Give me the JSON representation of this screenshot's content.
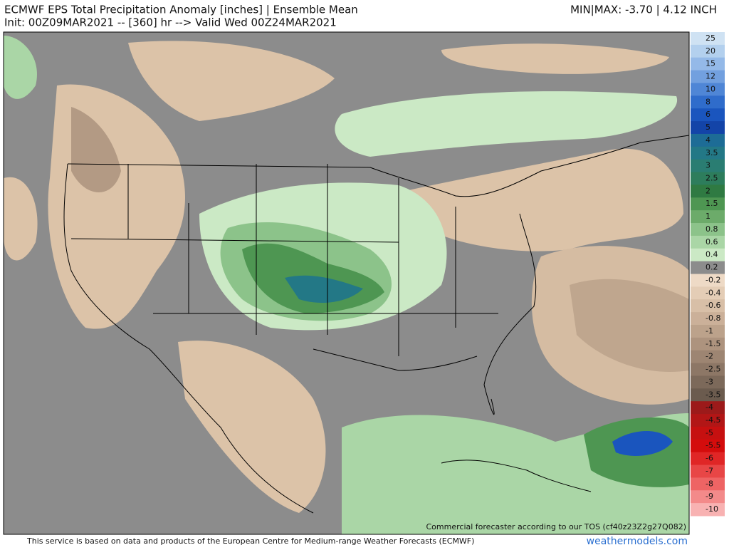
{
  "header": {
    "title": "ECMWF EPS Total Precipitation Anomaly [inches] | Ensemble Mean",
    "subtitle": "Init: 00Z09MAR2021 -- [360] hr --> Valid Wed 00Z24MAR2021",
    "minmax": "MIN|MAX: -3.70 | 4.12 INCH"
  },
  "colorbar": [
    {
      "value": 25,
      "color": "#cfe2f3"
    },
    {
      "value": 20,
      "color": "#b3d0ee"
    },
    {
      "value": 15,
      "color": "#94b9e8"
    },
    {
      "value": 12,
      "color": "#72a0df"
    },
    {
      "value": 10,
      "color": "#4f86d6"
    },
    {
      "value": 8,
      "color": "#2f6ccb"
    },
    {
      "value": 6,
      "color": "#1a55be"
    },
    {
      "value": 5,
      "color": "#1344a8"
    },
    {
      "value": 4,
      "color": "#1d6c96"
    },
    {
      "value": 3.5,
      "color": "#237886"
    },
    {
      "value": 3,
      "color": "#2a7d72"
    },
    {
      "value": 2.5,
      "color": "#2d7d5c"
    },
    {
      "value": 2,
      "color": "#2f7a42"
    },
    {
      "value": 1.5,
      "color": "#4e9652"
    },
    {
      "value": 1,
      "color": "#6cab6a"
    },
    {
      "value": 0.8,
      "color": "#8cc38a"
    },
    {
      "value": 0.6,
      "color": "#aad6a6"
    },
    {
      "value": 0.4,
      "color": "#cbe9c5"
    },
    {
      "value": 0.2,
      "color": "#8c8c8c"
    },
    {
      "value": -0.2,
      "color": "#eedac6"
    },
    {
      "value": -0.4,
      "color": "#e4cdb6"
    },
    {
      "value": -0.6,
      "color": "#d8bfa7"
    },
    {
      "value": -0.8,
      "color": "#cbb099"
    },
    {
      "value": -1,
      "color": "#bca28b"
    },
    {
      "value": -1.5,
      "color": "#ad937e"
    },
    {
      "value": -2,
      "color": "#9d8572"
    },
    {
      "value": -2.5,
      "color": "#8d7766"
    },
    {
      "value": -3,
      "color": "#7c695a"
    },
    {
      "value": -3.5,
      "color": "#6b5b4e"
    },
    {
      "value": -4,
      "color": "#9c1a1a"
    },
    {
      "value": -4.5,
      "color": "#b21616"
    },
    {
      "value": -5,
      "color": "#c61010"
    },
    {
      "value": -5.5,
      "color": "#d40c0c"
    },
    {
      "value": -6,
      "color": "#e02626"
    },
    {
      "value": -7,
      "color": "#e84646"
    },
    {
      "value": -8,
      "color": "#ee6464"
    },
    {
      "value": -9,
      "color": "#f38a8a"
    },
    {
      "value": -10,
      "color": "#f8b2b2"
    }
  ],
  "map": {
    "watermark": "Commercial forecaster according to our TOS (cf40z23Z2g27Q082)"
  },
  "footer": {
    "disclaimer": "This service is based on data and products of the European Centre for Medium-range Weather Forecasts (ECMWF)",
    "site": "weathermodels.com"
  }
}
